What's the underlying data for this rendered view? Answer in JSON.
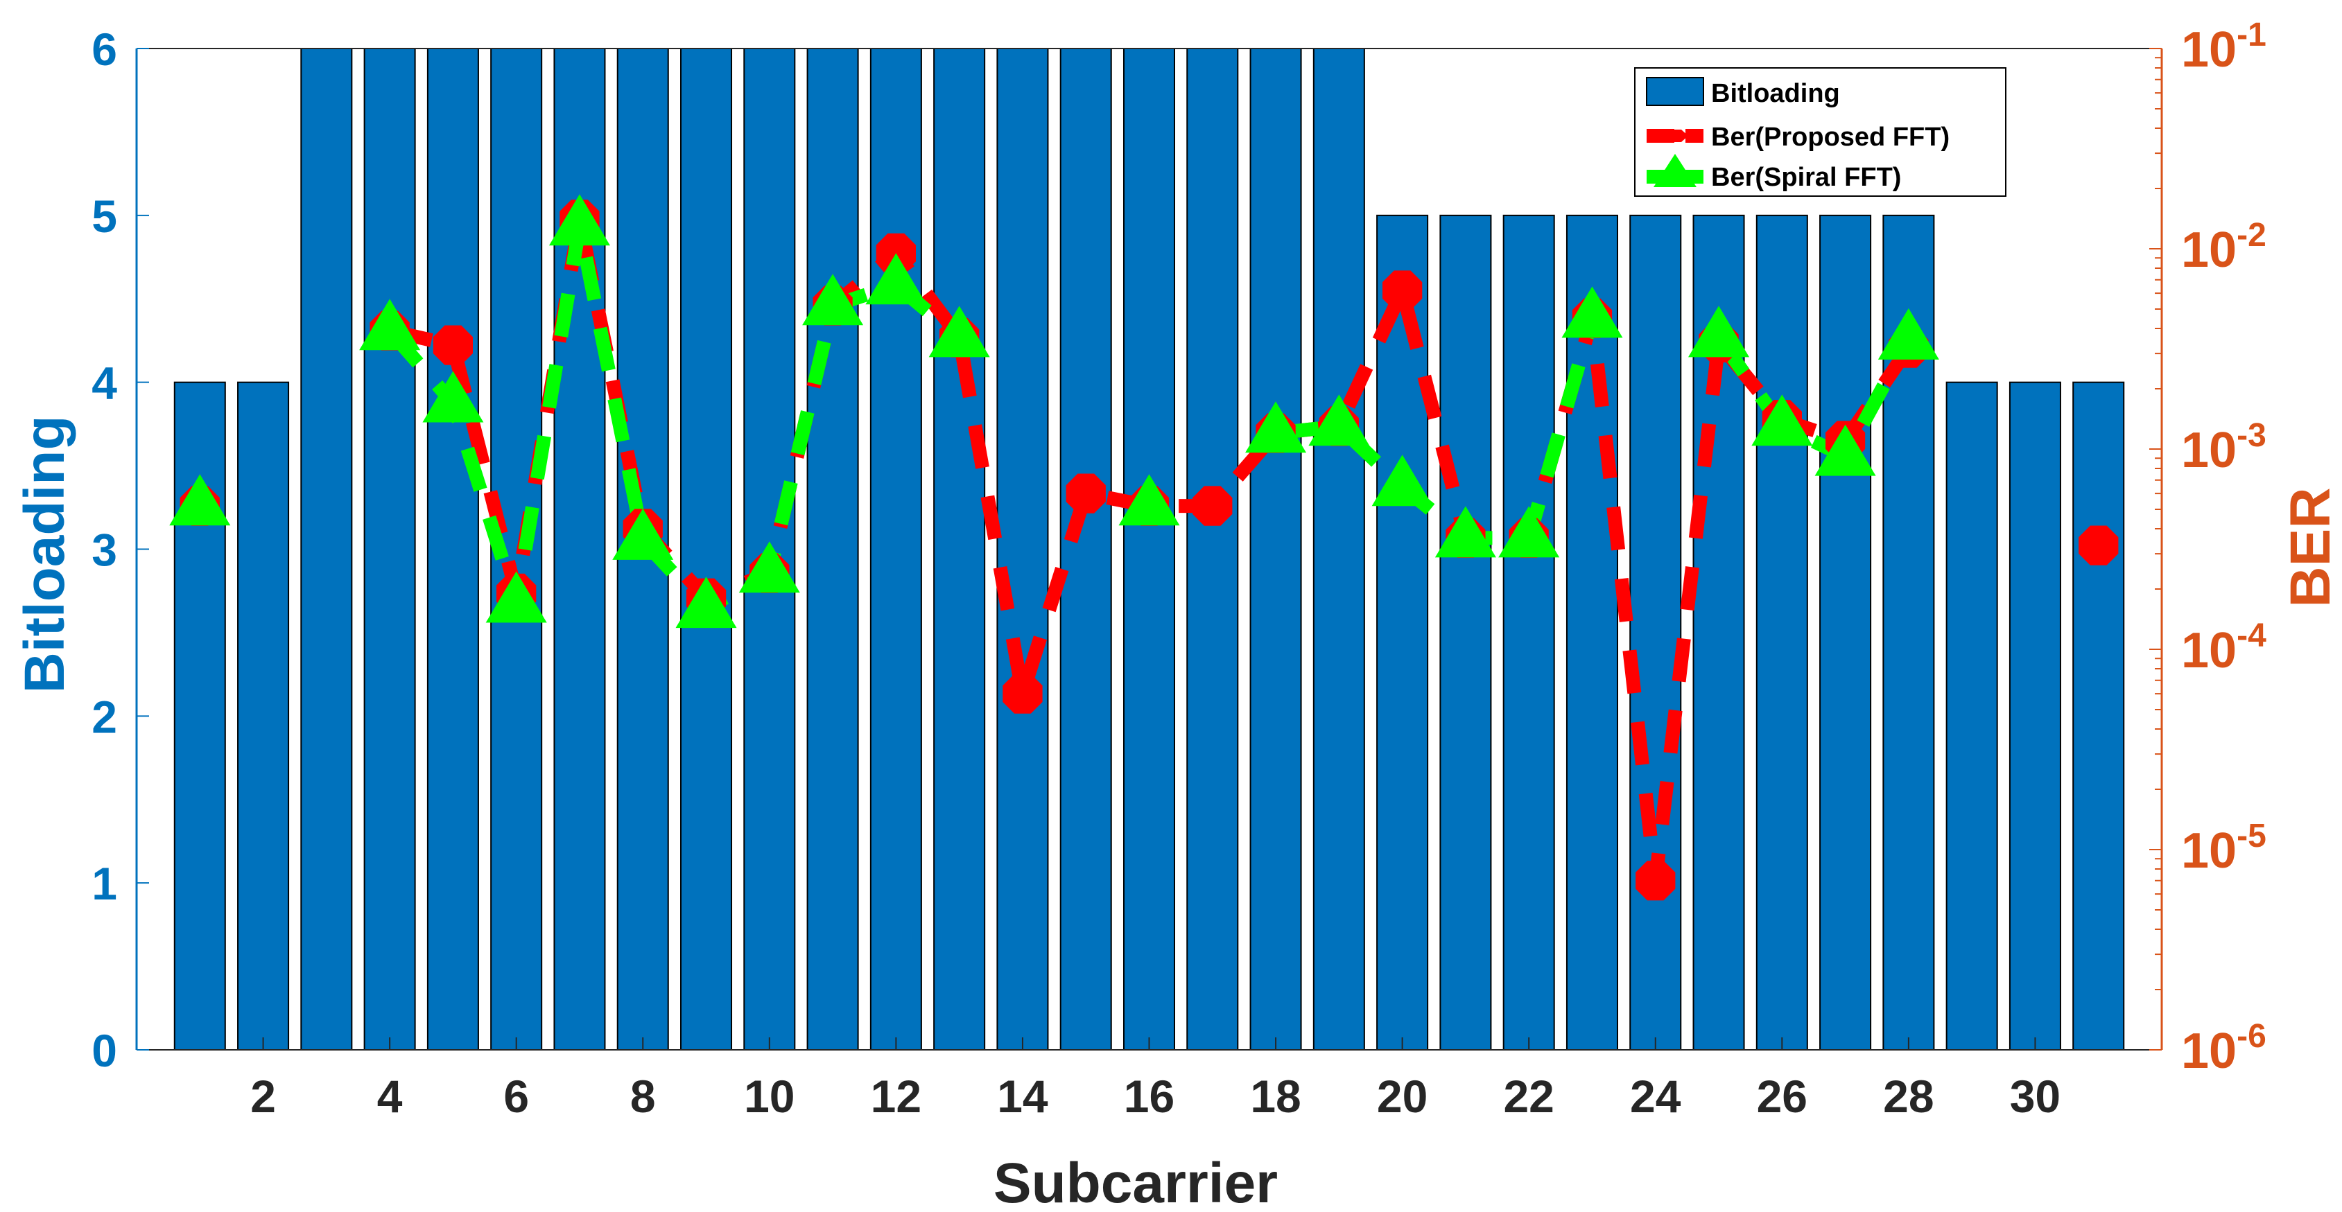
{
  "chart_data": {
    "type": "bar",
    "x": [
      1,
      2,
      3,
      4,
      5,
      6,
      7,
      8,
      9,
      10,
      11,
      12,
      13,
      14,
      15,
      16,
      17,
      18,
      19,
      20,
      21,
      22,
      23,
      24,
      25,
      26,
      27,
      28,
      29,
      30,
      31
    ],
    "xticks": [
      "2",
      "4",
      "6",
      "8",
      "10",
      "12",
      "14",
      "16",
      "18",
      "20",
      "22",
      "24",
      "26",
      "28",
      "30"
    ],
    "xtick_values": [
      2,
      4,
      6,
      8,
      10,
      12,
      14,
      16,
      18,
      20,
      22,
      24,
      26,
      28,
      30
    ],
    "xlim": [
      0,
      32
    ],
    "xlabel": "Subcarrier",
    "ylabel_left": "Bitloading",
    "ylim_left": [
      0,
      6
    ],
    "yticks_left": [
      "0",
      "1",
      "2",
      "3",
      "4",
      "5",
      "6"
    ],
    "ylabel_right": "BER",
    "yscale_right": "log",
    "ylim_right": [
      1e-06,
      0.1
    ],
    "yticks_right": [
      {
        "base": "10",
        "exp": "-6",
        "value": 1e-06
      },
      {
        "base": "10",
        "exp": "-5",
        "value": 1e-05
      },
      {
        "base": "10",
        "exp": "-4",
        "value": 0.0001
      },
      {
        "base": "10",
        "exp": "-3",
        "value": 0.001
      },
      {
        "base": "10",
        "exp": "-2",
        "value": 0.01
      },
      {
        "base": "10",
        "exp": "-1",
        "value": 0.1
      }
    ],
    "grid": false,
    "legend_position": "top-right",
    "series": [
      {
        "name": "Bitloading",
        "type": "bar",
        "axis": "left",
        "color": "#0072BD",
        "values": [
          4,
          4,
          6,
          6,
          6,
          6,
          6,
          6,
          6,
          6,
          6,
          6,
          6,
          6,
          6,
          6,
          6,
          6,
          6,
          5,
          5,
          5,
          5,
          5,
          5,
          5,
          5,
          5,
          4,
          4,
          4
        ]
      },
      {
        "name": "Ber(Proposed FFT)",
        "type": "line",
        "axis": "right",
        "style": "dashed",
        "marker": "octagon",
        "color": "#FF0000",
        "values": [
          0.00052,
          null,
          null,
          0.0039,
          0.0033,
          0.00019,
          0.014,
          0.0004,
          0.00018,
          0.00024,
          0.0052,
          0.0095,
          0.0036,
          6e-05,
          0.0006,
          0.00052,
          0.00052,
          0.0012,
          0.0013,
          0.0062,
          0.00036,
          0.00036,
          0.0045,
          7e-06,
          0.0034,
          0.0014,
          0.0011,
          0.0032,
          null,
          null,
          0.00033
        ]
      },
      {
        "name": "Ber(Spiral FFT)",
        "type": "line",
        "axis": "right",
        "style": "dashed",
        "marker": "triangle",
        "color": "#00FF00",
        "values": [
          0.00052,
          null,
          null,
          0.0039,
          0.0017,
          0.00017,
          0.013,
          0.00035,
          0.00016,
          0.00024,
          0.0052,
          0.0066,
          0.0036,
          null,
          null,
          0.00052,
          null,
          0.0012,
          0.0013,
          0.00065,
          0.00036,
          0.00036,
          0.0045,
          null,
          0.0036,
          0.0013,
          0.00092,
          0.0035,
          null,
          null,
          null
        ]
      }
    ]
  }
}
